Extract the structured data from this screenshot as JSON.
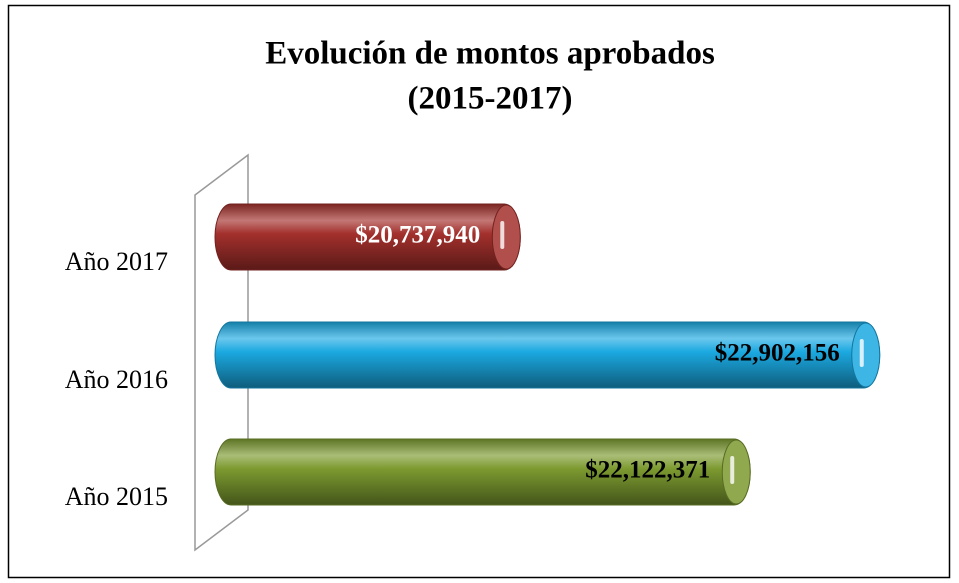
{
  "chart_data": {
    "type": "bar",
    "orientation": "horizontal",
    "title": [
      "Evolución de montos aprobados",
      "(2015-2017)"
    ],
    "categories": [
      "Año 2017",
      "Año 2016",
      "Año 2015"
    ],
    "values": [
      20737940,
      22902156,
      22122371
    ],
    "value_labels": [
      "$20,737,940",
      "$22,902,156",
      "$22,122,371"
    ],
    "colors": [
      "#a3302c",
      "#1ba9e1",
      "#7c9a30"
    ],
    "label_colors": [
      "#ffffff",
      "#000000",
      "#000000"
    ],
    "xlim": [
      18900000,
      23000000
    ]
  }
}
